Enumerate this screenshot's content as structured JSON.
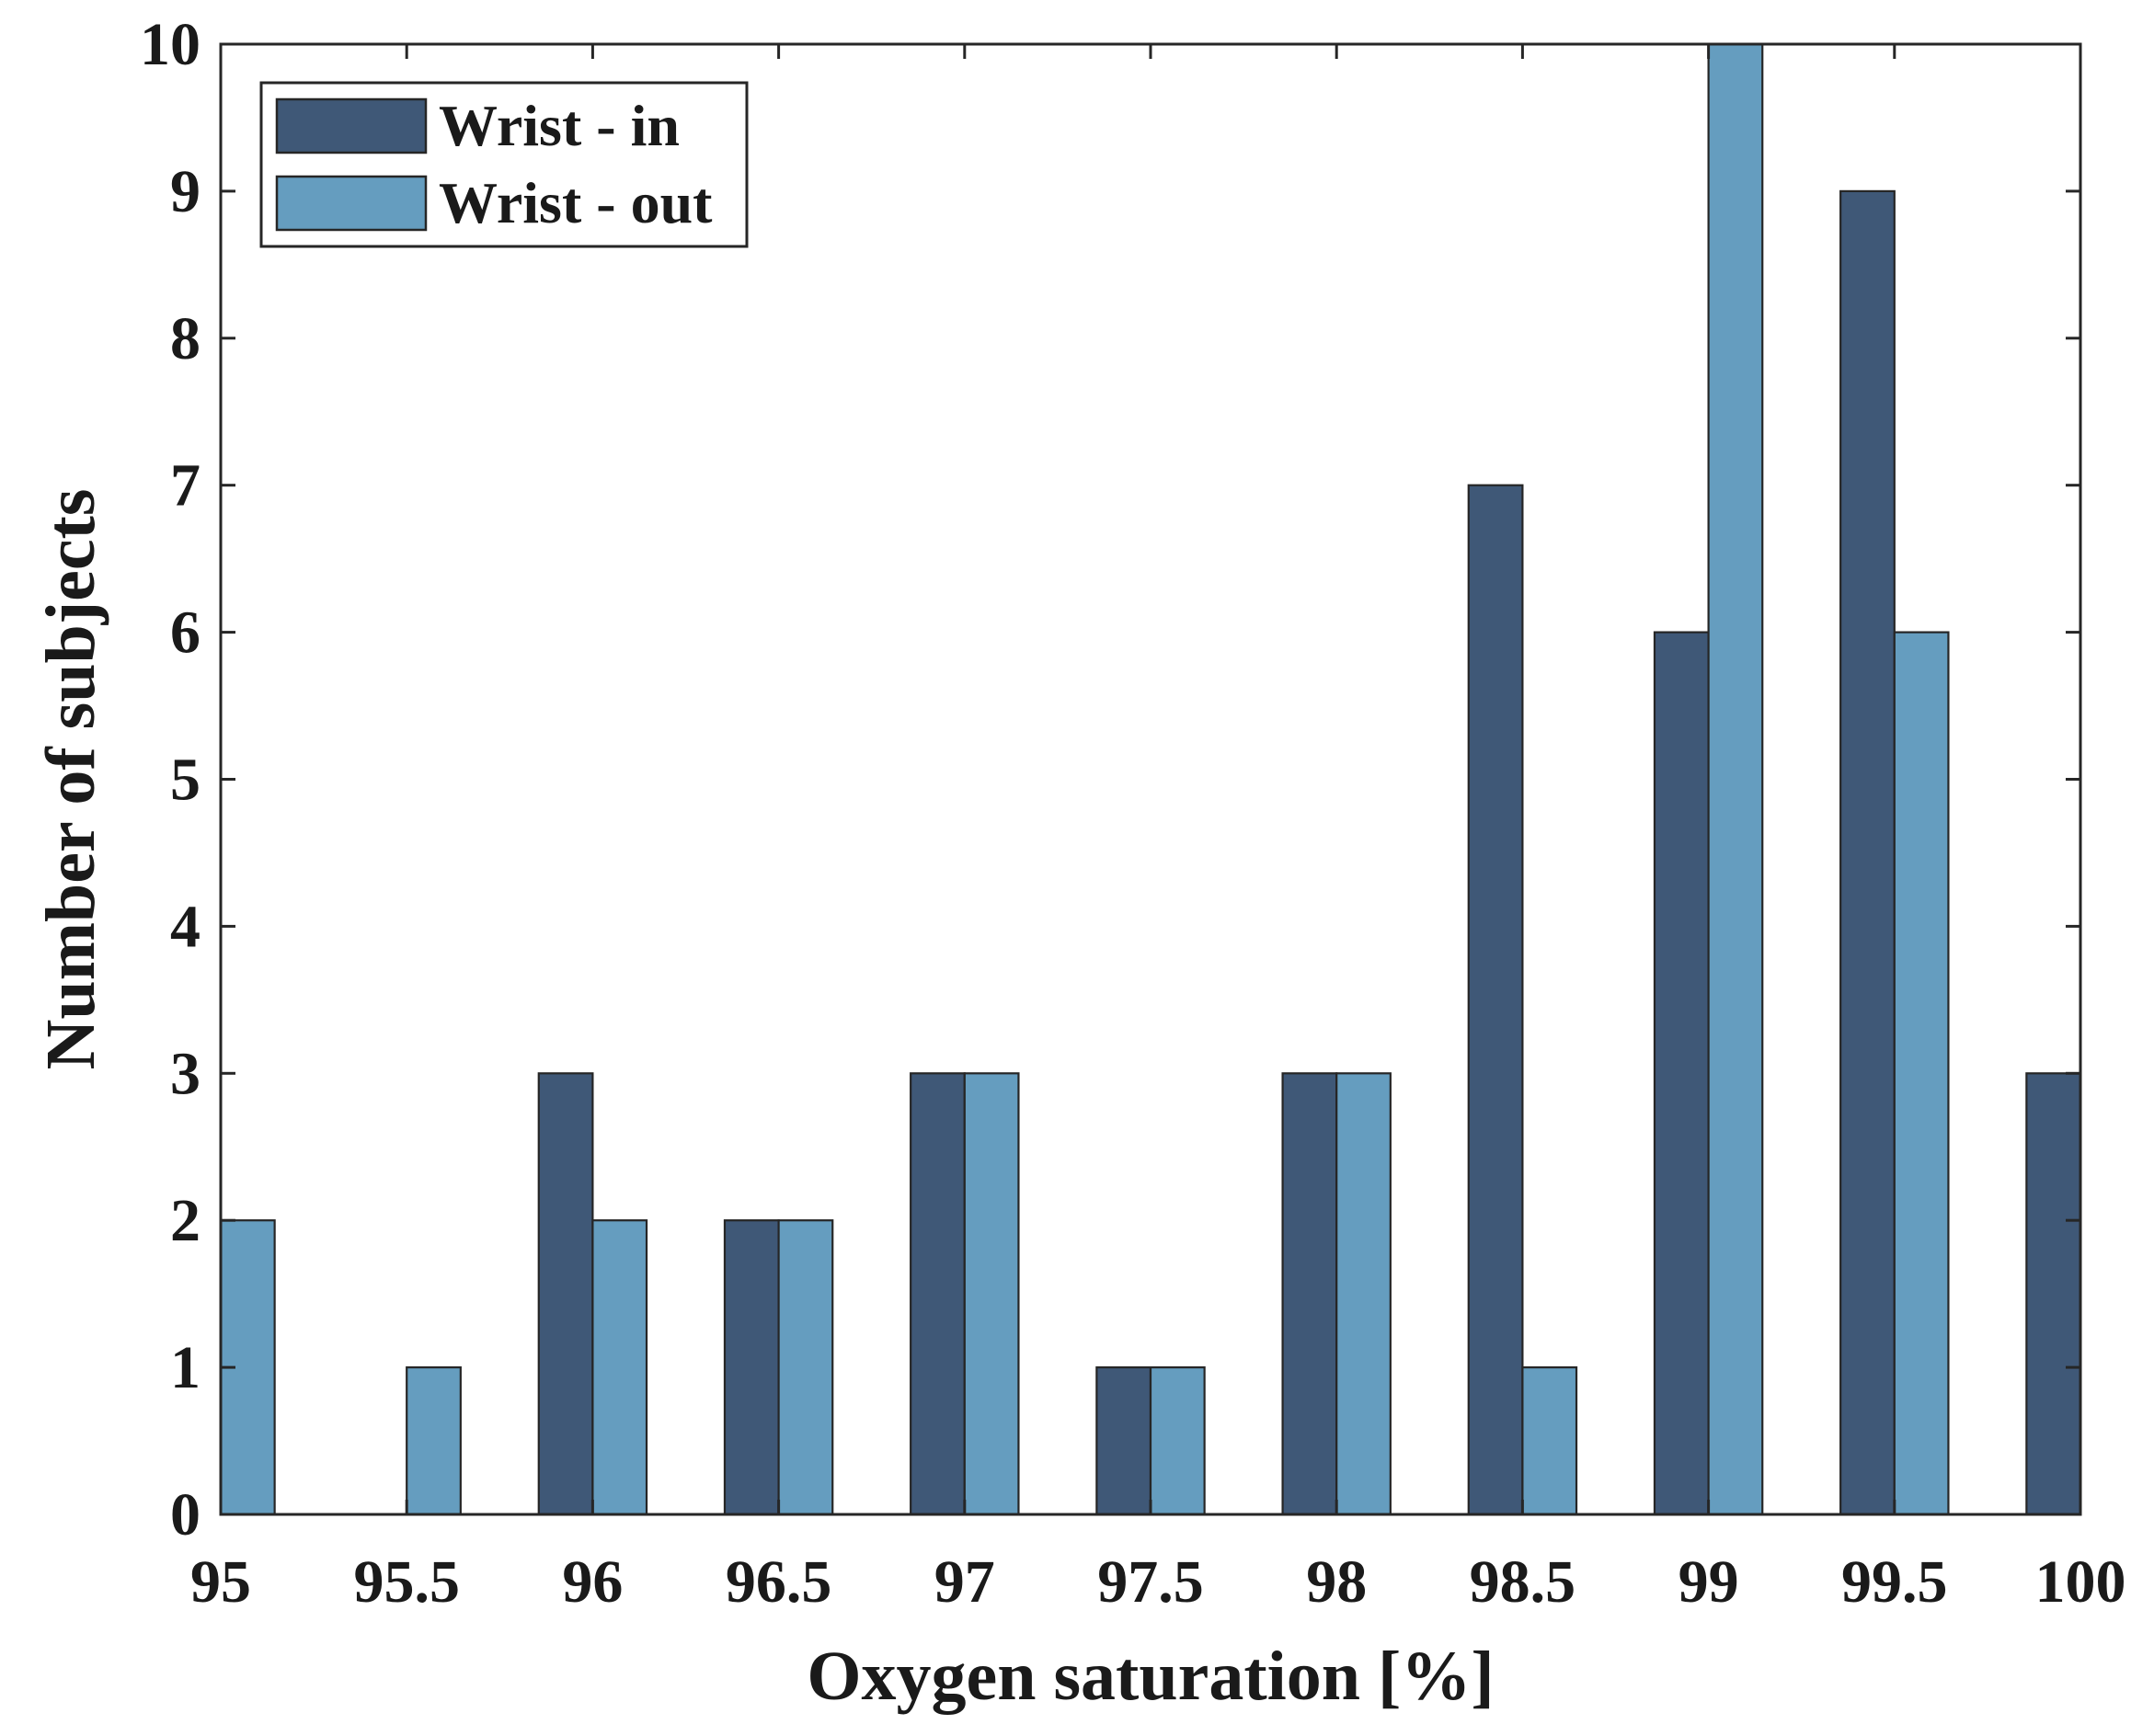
{
  "chart_data": {
    "type": "bar",
    "title": "",
    "xlabel": "Oxygen saturation [%]",
    "ylabel": "Number of subjects",
    "x": [
      95,
      95.5,
      96,
      96.5,
      97,
      97.5,
      98,
      98.5,
      99,
      99.5,
      100
    ],
    "x_tick_labels": [
      "95",
      "95.5",
      "96",
      "96.5",
      "97",
      "97.5",
      "98",
      "98.5",
      "99",
      "99.5",
      "100"
    ],
    "y_tick_labels": [
      "0",
      "1",
      "2",
      "3",
      "4",
      "5",
      "6",
      "7",
      "8",
      "9",
      "10"
    ],
    "xlim": [
      95,
      100
    ],
    "ylim": [
      0,
      10
    ],
    "grid": false,
    "legend_position": "top-left",
    "series": [
      {
        "name": "Wrist - in",
        "color": "#3f5877",
        "values": [
          0,
          0,
          3,
          2,
          3,
          1,
          3,
          7,
          6,
          9,
          3
        ]
      },
      {
        "name": "Wrist - out",
        "color": "#659dbf",
        "values": [
          2,
          1,
          2,
          2,
          3,
          1,
          3,
          1,
          10,
          6,
          0
        ]
      }
    ]
  }
}
